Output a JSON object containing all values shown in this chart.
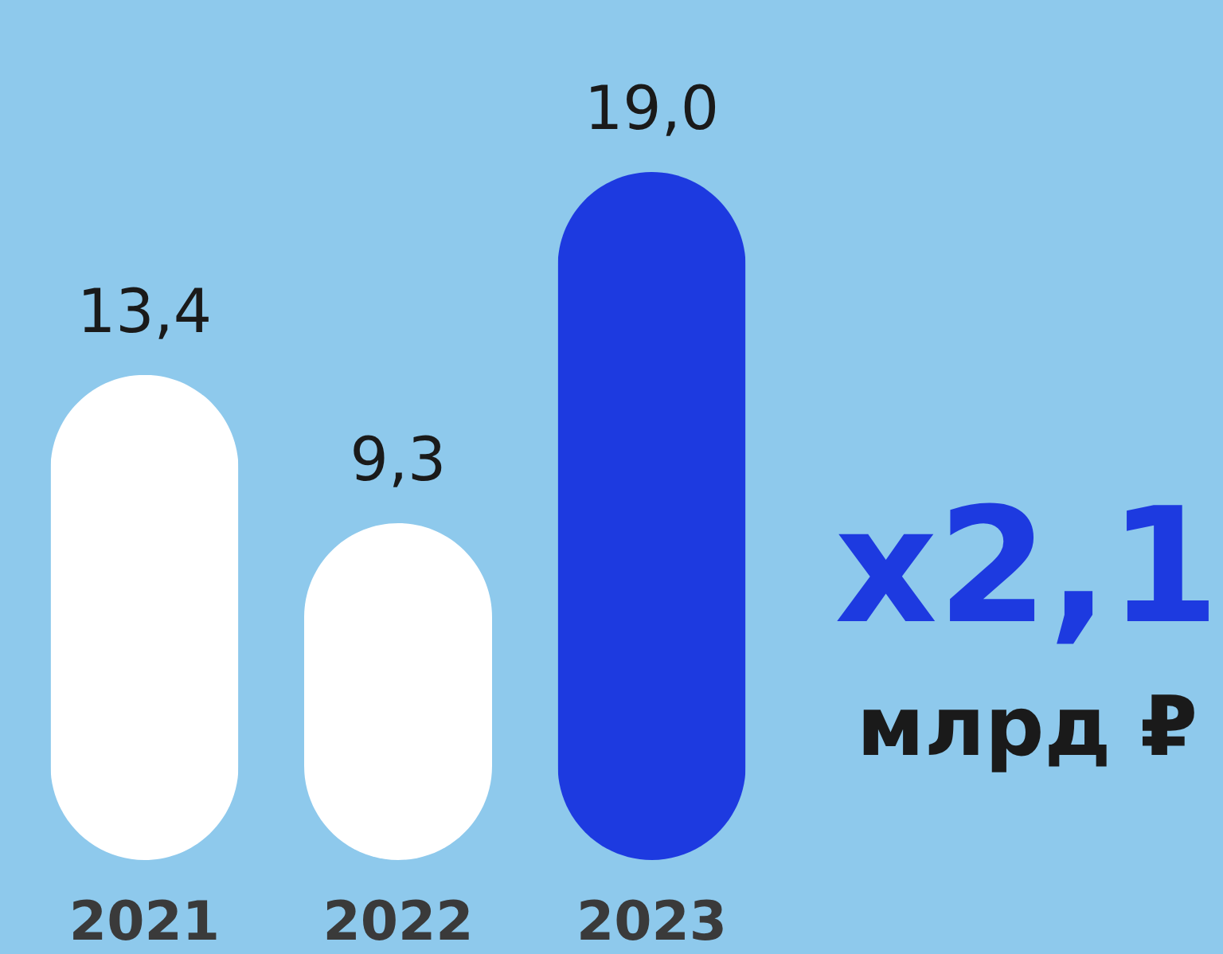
{
  "chart_data": {
    "type": "bar",
    "categories": [
      "2021",
      "2022",
      "2023"
    ],
    "values": [
      13.4,
      9.3,
      19.0
    ],
    "colors": [
      "#ffffff",
      "#ffffff",
      "#1d3ae0"
    ],
    "value_labels": [
      "13,4",
      "9,3",
      "19,0"
    ],
    "annotations": [
      "x2,1",
      "млрд ₽"
    ]
  }
}
